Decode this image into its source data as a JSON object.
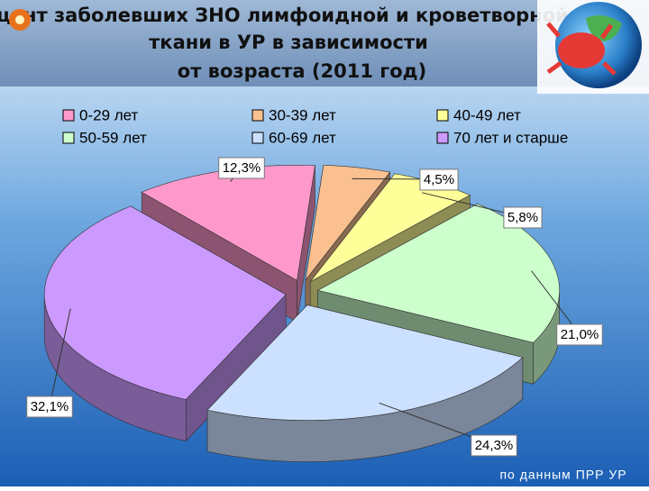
{
  "chart_data": {
    "type": "pie3d",
    "title": [
      "Процент заболевших ЗНО лимфоидной и кроветворной",
      "ткани в УР в зависимости",
      "от возраста (2011 год)"
    ],
    "categories": [
      "0-29 лет",
      "30-39 лет",
      "40-49 лет",
      "50-59 лет",
      "60-69 лет",
      "70 лет и старше"
    ],
    "values": [
      12.3,
      4.5,
      5.8,
      21.0,
      24.3,
      32.1
    ],
    "value_labels": [
      "12,3%",
      "4,5%",
      "5,8%",
      "21,0%",
      "24,3%",
      "32,1%"
    ],
    "colors": [
      "#ff99cc",
      "#fac090",
      "#ffff99",
      "#ccffcc",
      "#cce0ff",
      "#cc99ff"
    ],
    "source": "по данным ПРР УР"
  }
}
